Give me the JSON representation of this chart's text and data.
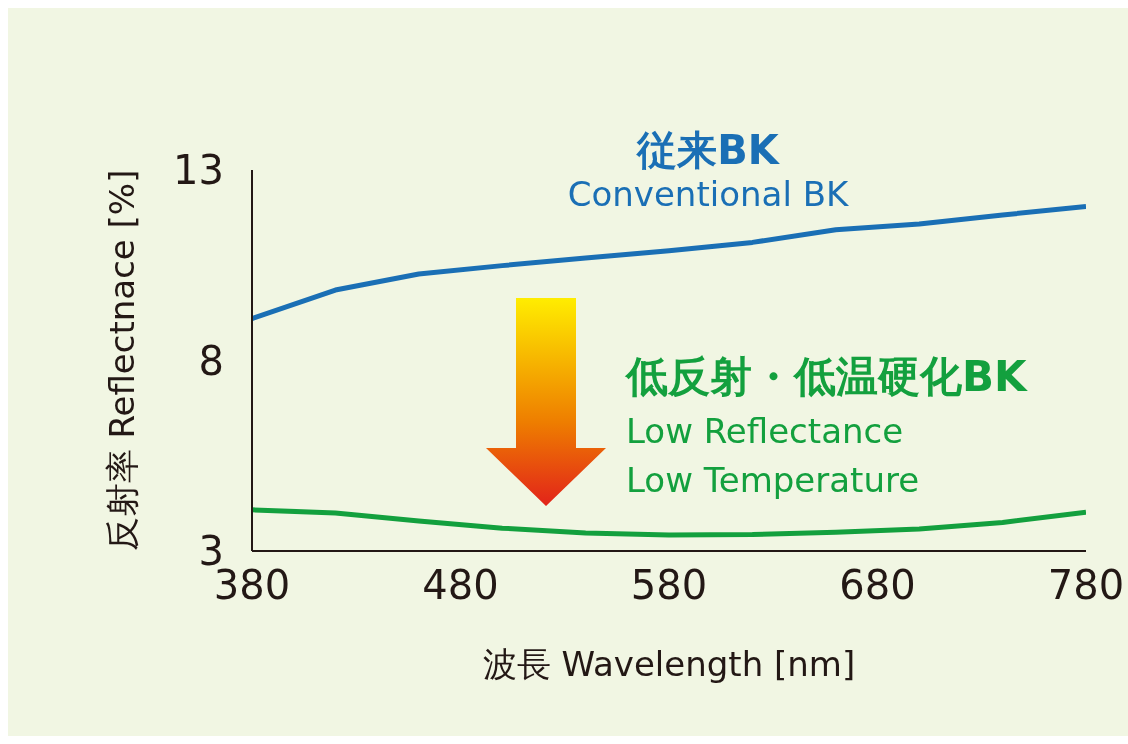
{
  "chart_data": {
    "type": "line",
    "xlabel": "波長 Wavelength [nm]",
    "ylabel": "反射率 Reflectnace [%]",
    "x": [
      380,
      420,
      460,
      500,
      540,
      580,
      620,
      660,
      700,
      740,
      780
    ],
    "series": [
      {
        "name": "従来BK",
        "color": "#1a6fb5",
        "values": [
          9.1,
          9.85,
          10.27,
          10.49,
          10.69,
          10.88,
          11.1,
          11.43,
          11.58,
          11.82,
          12.04
        ]
      },
      {
        "name": "低反射・低温硬化BK",
        "color": "#13a03e",
        "values": [
          4.08,
          4.0,
          3.79,
          3.6,
          3.47,
          3.42,
          3.43,
          3.49,
          3.58,
          3.75,
          4.02
        ]
      }
    ],
    "annotations": [
      "Conventional BK",
      "Low Reflectance",
      "Low Temperature"
    ],
    "xlim": [
      380,
      780
    ],
    "xticks": [
      380,
      480,
      580,
      680,
      780
    ],
    "ylim": [
      3,
      13
    ],
    "yticks": [
      3,
      8,
      13
    ],
    "grid": false,
    "marker": "none",
    "line_style": "solid"
  }
}
